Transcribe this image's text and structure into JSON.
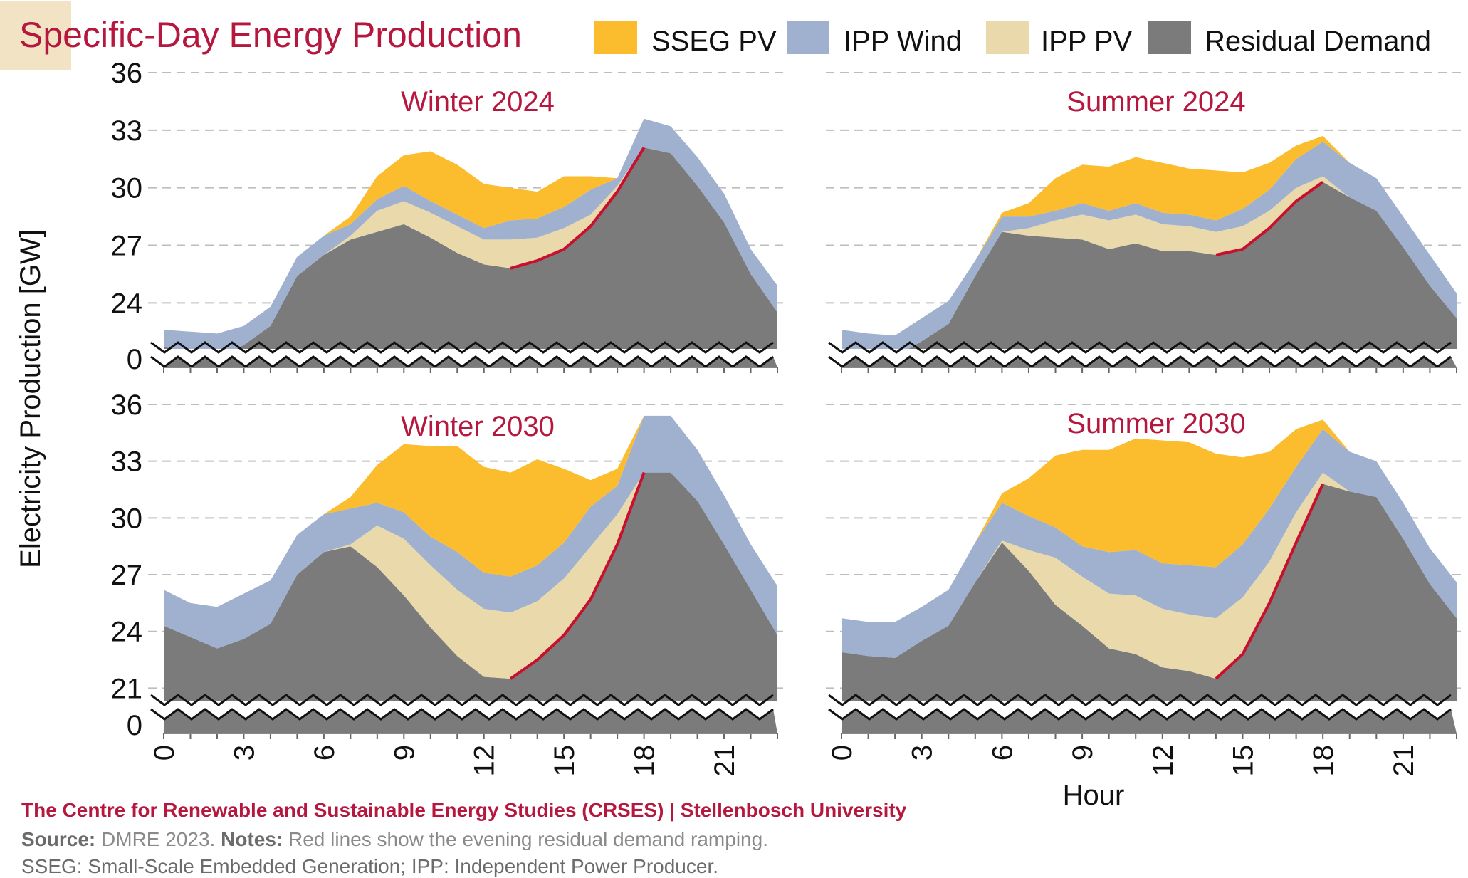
{
  "title": "Specific-Day Energy Production",
  "legend": [
    {
      "label": "SSEG PV",
      "color": "#fbbd2e",
      "icon": "legend-swatch"
    },
    {
      "label": "IPP Wind",
      "color": "#9fb1cf",
      "icon": "legend-swatch"
    },
    {
      "label": "IPP PV",
      "color": "#ead9ab",
      "icon": "legend-swatch"
    },
    {
      "label": "Residual Demand",
      "color": "#7b7b7b",
      "icon": "legend-swatch"
    }
  ],
  "colors": {
    "title": "#b5173e",
    "ramp_line": "#c8102e",
    "grid": "#bdbdbd",
    "title_box": "#f2e3c5"
  },
  "ylabel": "Electricity Production [GW]",
  "xlabel": "Hour",
  "footer": {
    "org": "The Centre for Renewable and Sustainable Energy Studies (CRSES) | Stellenbosch University",
    "source_label": "Source:",
    "source_text": " DMRE 2023. ",
    "notes_label": "Notes:",
    "notes_text": " Red lines show the evening residual demand ramping.",
    "line3": "SSEG: Small-Scale Embedded Generation; IPP: Independent Power Producer."
  },
  "chart_data": [
    {
      "type": "area",
      "stacked": true,
      "title": "Winter 2024",
      "x": [
        0,
        1,
        2,
        3,
        4,
        5,
        6,
        7,
        8,
        9,
        10,
        11,
        12,
        13,
        14,
        15,
        16,
        17,
        18,
        19,
        20,
        21,
        22,
        23
      ],
      "xticks": [
        "0",
        "3",
        "6",
        "9",
        "12",
        "15",
        "18",
        "21"
      ],
      "yticks": [
        "0",
        "24",
        "27",
        "30",
        "33",
        "36"
      ],
      "ylim": [
        21.6,
        36
      ],
      "axis_break": true,
      "grid": true,
      "ramp_range": [
        13,
        18
      ],
      "series": [
        {
          "name": "Residual Demand",
          "values": [
            21.7,
            21.4,
            21.1,
            21.8,
            22.8,
            25.4,
            26.5,
            27.3,
            27.7,
            28.1,
            27.4,
            26.6,
            26.0,
            25.8,
            26.2,
            26.8,
            28.0,
            29.8,
            32.1,
            31.8,
            30.1,
            28.2,
            25.5,
            23.5
          ]
        },
        {
          "name": "IPP PV",
          "values": [
            0,
            0,
            0,
            0,
            0,
            0,
            0,
            0.2,
            1.1,
            1.2,
            1.3,
            1.4,
            1.3,
            1.5,
            1.2,
            1.1,
            0.6,
            0.3,
            0,
            0,
            0,
            0,
            0,
            0
          ]
        },
        {
          "name": "IPP Wind",
          "values": [
            0.9,
            1.1,
            1.3,
            1.0,
            1.0,
            1.0,
            1.0,
            0.6,
            0.6,
            0.8,
            0.6,
            0.6,
            0.6,
            1.0,
            1.0,
            1.1,
            1.3,
            0.4,
            1.5,
            1.4,
            1.5,
            1.5,
            1.3,
            1.4
          ]
        },
        {
          "name": "SSEG PV",
          "values": [
            0,
            0,
            0,
            0,
            0,
            0,
            0,
            0.4,
            1.2,
            1.6,
            2.6,
            2.6,
            2.3,
            1.7,
            1.4,
            1.6,
            0.7,
            0,
            0,
            0,
            0,
            0,
            0,
            0
          ]
        }
      ]
    },
    {
      "type": "area",
      "stacked": true,
      "title": "Summer 2024",
      "x": [
        0,
        1,
        2,
        3,
        4,
        5,
        6,
        7,
        8,
        9,
        10,
        11,
        12,
        13,
        14,
        15,
        16,
        17,
        18,
        19,
        20,
        21,
        22,
        23
      ],
      "xticks": [
        "0",
        "3",
        "6",
        "9",
        "12",
        "15",
        "18",
        "21"
      ],
      "yticks": [],
      "ylim": [
        21.6,
        36
      ],
      "axis_break": true,
      "grid": true,
      "ramp_range": [
        14,
        18
      ],
      "series": [
        {
          "name": "Residual Demand",
          "values": [
            21.6,
            21.3,
            21.2,
            22.0,
            22.9,
            25.4,
            27.7,
            27.5,
            27.4,
            27.3,
            26.8,
            27.1,
            26.7,
            26.7,
            26.5,
            26.8,
            27.9,
            29.3,
            30.3,
            29.5,
            28.8,
            26.9,
            24.9,
            23.2
          ]
        },
        {
          "name": "IPP PV",
          "values": [
            0,
            0,
            0,
            0,
            0,
            0,
            0,
            0.4,
            0.9,
            1.3,
            1.5,
            1.5,
            1.4,
            1.3,
            1.2,
            1.2,
            0.9,
            0.7,
            0.3,
            0,
            0,
            0,
            0,
            0
          ]
        },
        {
          "name": "IPP Wind",
          "values": [
            1.0,
            1.1,
            1.1,
            1.2,
            1.2,
            0.8,
            0.8,
            0.6,
            0.5,
            0.6,
            0.5,
            0.6,
            0.6,
            0.6,
            0.6,
            0.9,
            1.1,
            1.5,
            1.8,
            1.8,
            1.7,
            1.6,
            1.6,
            1.3
          ]
        },
        {
          "name": "SSEG PV",
          "values": [
            0,
            0,
            0,
            0,
            0,
            0,
            0.2,
            0.7,
            1.7,
            2.0,
            2.3,
            2.4,
            2.6,
            2.4,
            2.6,
            1.9,
            1.4,
            0.7,
            0.3,
            0,
            0,
            0,
            0,
            0
          ]
        }
      ]
    },
    {
      "type": "area",
      "stacked": true,
      "title": "Winter 2030",
      "x": [
        0,
        1,
        2,
        3,
        4,
        5,
        6,
        7,
        8,
        9,
        10,
        11,
        12,
        13,
        14,
        15,
        16,
        17,
        18,
        19,
        20,
        21,
        22,
        23
      ],
      "xticks": [
        "0",
        "3",
        "6",
        "9",
        "12",
        "15",
        "18",
        "21"
      ],
      "yticks": [
        "0",
        "21",
        "24",
        "27",
        "30",
        "33",
        "36"
      ],
      "ylim": [
        20.3,
        36
      ],
      "axis_break": true,
      "grid": true,
      "ramp_range": [
        13,
        18
      ],
      "series": [
        {
          "name": "Residual Demand",
          "values": [
            24.3,
            23.7,
            23.1,
            23.6,
            24.4,
            27.0,
            28.2,
            28.5,
            27.4,
            25.9,
            24.2,
            22.7,
            21.6,
            21.5,
            22.5,
            23.8,
            25.7,
            28.6,
            32.4,
            32.4,
            30.9,
            28.6,
            26.2,
            23.8
          ]
        },
        {
          "name": "IPP PV",
          "values": [
            0,
            0,
            0,
            0,
            0,
            0,
            0,
            0.1,
            2.2,
            3.0,
            3.3,
            3.5,
            3.6,
            3.5,
            3.1,
            3.0,
            2.8,
            1.6,
            0,
            0,
            0,
            0,
            0,
            0
          ]
        },
        {
          "name": "IPP Wind",
          "values": [
            1.9,
            1.8,
            2.2,
            2.4,
            2.3,
            2.1,
            2.0,
            1.9,
            1.2,
            1.4,
            1.5,
            2.0,
            1.9,
            1.9,
            1.9,
            1.9,
            2.1,
            1.5,
            3.0,
            3.0,
            2.7,
            2.6,
            2.4,
            2.6
          ]
        },
        {
          "name": "SSEG PV",
          "values": [
            0,
            0,
            0,
            0,
            0,
            0,
            0,
            0.6,
            2.0,
            3.6,
            4.8,
            5.6,
            5.6,
            5.5,
            5.6,
            3.9,
            1.4,
            0.9,
            0,
            0,
            0,
            0,
            0,
            0
          ]
        }
      ]
    },
    {
      "type": "area",
      "stacked": true,
      "title": "Summer 2030",
      "x": [
        0,
        1,
        2,
        3,
        4,
        5,
        6,
        7,
        8,
        9,
        10,
        11,
        12,
        13,
        14,
        15,
        16,
        17,
        18,
        19,
        20,
        21,
        22,
        23
      ],
      "xticks": [
        "0",
        "3",
        "6",
        "9",
        "12",
        "15",
        "18",
        "21"
      ],
      "yticks": [],
      "ylim": [
        20.3,
        36
      ],
      "axis_break": true,
      "grid": true,
      "ramp_range": [
        14,
        18
      ],
      "series": [
        {
          "name": "Residual Demand",
          "values": [
            22.9,
            22.7,
            22.6,
            23.5,
            24.3,
            26.6,
            28.7,
            27.2,
            25.4,
            24.3,
            23.1,
            22.8,
            22.1,
            21.9,
            21.5,
            22.8,
            25.5,
            28.7,
            31.8,
            31.4,
            31.1,
            28.9,
            26.5,
            24.7
          ]
        },
        {
          "name": "IPP PV",
          "values": [
            0,
            0,
            0,
            0,
            0,
            0,
            0.1,
            1.1,
            2.5,
            2.6,
            2.9,
            3.1,
            3.1,
            3.0,
            3.2,
            3.0,
            2.2,
            1.6,
            0.6,
            0,
            0,
            0,
            0,
            0
          ]
        },
        {
          "name": "IPP Wind",
          "values": [
            1.8,
            1.8,
            1.9,
            1.8,
            1.9,
            2.1,
            2.0,
            1.8,
            1.6,
            1.6,
            2.2,
            2.4,
            2.4,
            2.6,
            2.7,
            2.8,
            2.8,
            2.4,
            2.3,
            2.1,
            1.9,
            1.9,
            1.9,
            1.9
          ]
        },
        {
          "name": "SSEG PV",
          "values": [
            0,
            0,
            0,
            0,
            0,
            0,
            0.5,
            2.0,
            3.8,
            5.1,
            5.4,
            5.9,
            6.5,
            6.5,
            6.0,
            4.6,
            3.0,
            2.0,
            0.5,
            0,
            0,
            0,
            0,
            0
          ]
        }
      ]
    }
  ]
}
